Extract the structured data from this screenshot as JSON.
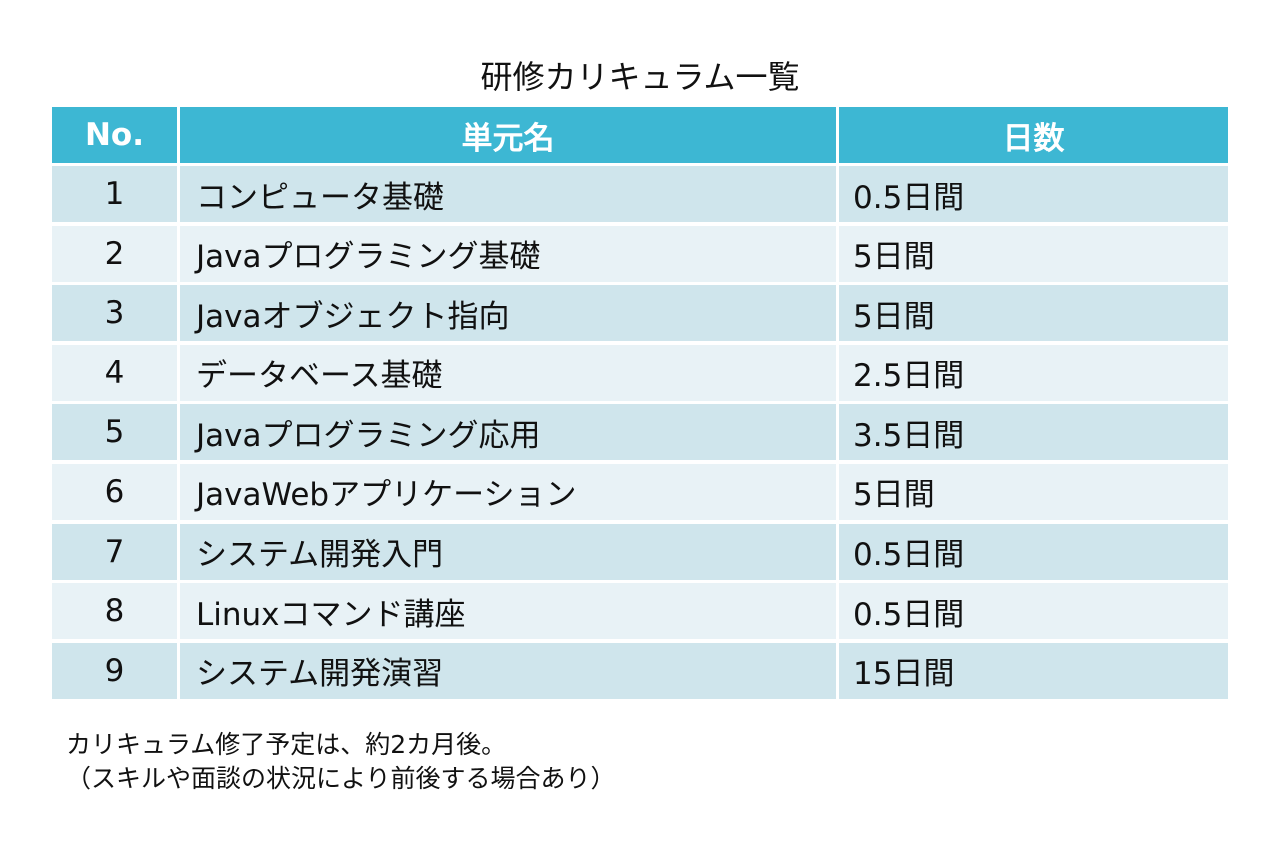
{
  "title": "研修カリキュラム一覧",
  "table": {
    "header": [
      "No.",
      "単元名",
      "日数"
    ],
    "rows": [
      [
        1,
        "コンピュータ基礎",
        "0.5日間"
      ],
      [
        2,
        "Javaプログラミング基礎",
        "5日間"
      ],
      [
        3,
        "Javaオブジェクト指向",
        "5日間"
      ],
      [
        4,
        "データベース基礎",
        "2.5日間"
      ],
      [
        5,
        "Javaプログラミング応用",
        "3.5日間"
      ],
      [
        6,
        "JavaWebアプリケーション",
        "5日間"
      ],
      [
        7,
        "システム開発入門",
        "0.5日間"
      ],
      [
        8,
        "Linuxコマンド講座",
        "0.5日間"
      ],
      [
        9,
        "システム開発演習",
        "15日間"
      ]
    ]
  },
  "notes": [
    "カリキュラム修了予定は、約2カ月後。",
    "（スキルや面談の状況により前後する場合あり）"
  ]
}
